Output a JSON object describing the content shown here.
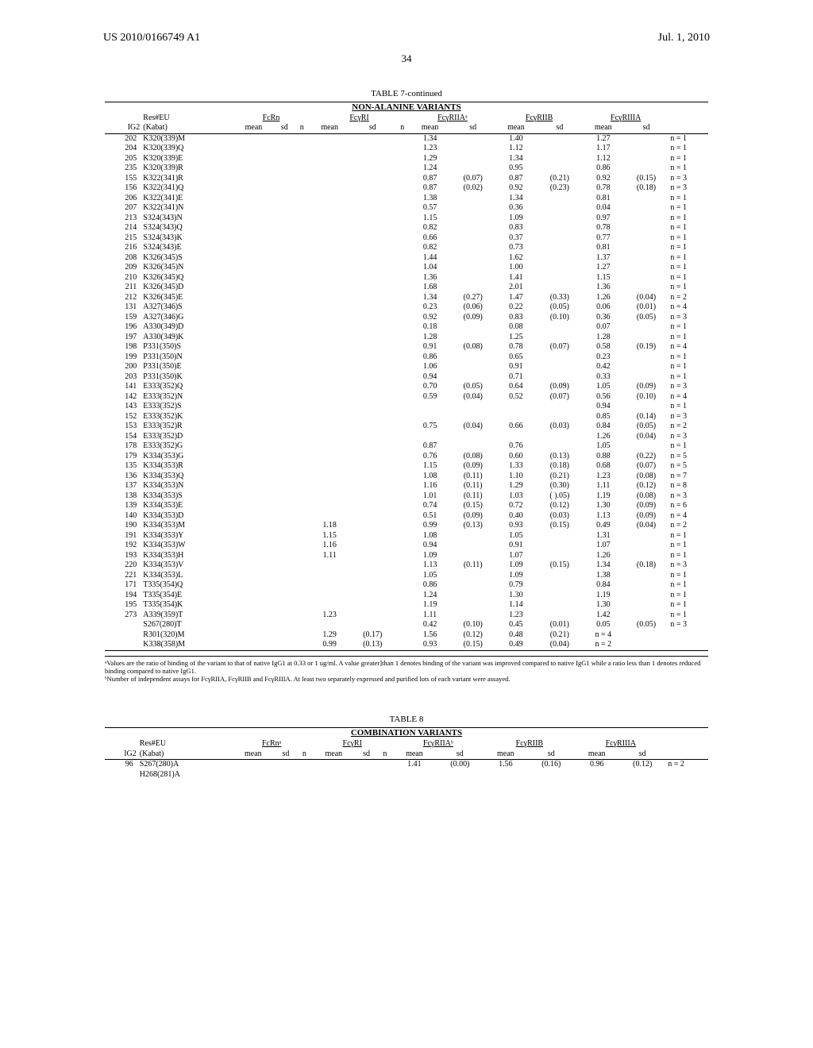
{
  "header": {
    "left": "US 2010/0166749 A1",
    "right": "Jul. 1, 2010",
    "page": "34"
  },
  "table7": {
    "title": "TABLE 7-continued",
    "subtitle": "NON-ALANINE VARIANTS",
    "group_headers": [
      "Res#EU",
      "FcRn",
      "FcγRI",
      "FcγRIIAᵃ",
      "FcγRIIB",
      "FcγRIIIA"
    ],
    "sub_headers_left": [
      "IG2",
      "(Kabat)"
    ],
    "sub_headers_stats": [
      "mean",
      "sd",
      "n",
      "mean",
      "sd",
      "n",
      "mean",
      "sd",
      "mean",
      "sd",
      "mean",
      "sd",
      ""
    ],
    "rows": [
      {
        "ig2": "202",
        "res": "K320(339)M",
        "rIIA_m": "1.34",
        "rIIB_m": "1.40",
        "rIIIA_m": "1.27",
        "n": "n = 1"
      },
      {
        "ig2": "204",
        "res": "K320(339)Q",
        "rIIA_m": "1.23",
        "rIIB_m": "1.12",
        "rIIIA_m": "1.17",
        "n": "n = 1"
      },
      {
        "ig2": "205",
        "res": "K320(339)E",
        "rIIA_m": "1.29",
        "rIIB_m": "1.34",
        "rIIIA_m": "1.12",
        "n": "n = 1"
      },
      {
        "ig2": "235",
        "res": "K320(339)R",
        "rIIA_m": "1.24",
        "rIIB_m": "0.95",
        "rIIIA_m": "0.86",
        "n": "n = 1"
      },
      {
        "ig2": "155",
        "res": "K322(341)R",
        "rIIA_m": "0.87",
        "rIIA_s": "(0.07)",
        "rIIB_m": "0.87",
        "rIIB_s": "(0.21)",
        "rIIIA_m": "0.92",
        "rIIIA_s": "(0.15)",
        "n": "n = 3"
      },
      {
        "ig2": "156",
        "res": "K322(341)Q",
        "rIIA_m": "0.87",
        "rIIA_s": "(0.02)",
        "rIIB_m": "0.92",
        "rIIB_s": "(0.23)",
        "rIIIA_m": "0.78",
        "rIIIA_s": "(0.18)",
        "n": "n = 3"
      },
      {
        "ig2": "206",
        "res": "K322(341)E",
        "rIIA_m": "1.38",
        "rIIB_m": "1.34",
        "rIIIA_m": "0.81",
        "n": "n = 1"
      },
      {
        "ig2": "207",
        "res": "K322(341)N",
        "rIIA_m": "0.57",
        "rIIB_m": "0.36",
        "rIIIA_m": "0.04",
        "n": "n = 1"
      },
      {
        "ig2": "213",
        "res": "S324(343)N",
        "rIIA_m": "1.15",
        "rIIB_m": "1.09",
        "rIIIA_m": "0.97",
        "n": "n = 1"
      },
      {
        "ig2": "214",
        "res": "S324(343)Q",
        "rIIA_m": "0.82",
        "rIIB_m": "0.83",
        "rIIIA_m": "0.78",
        "n": "n = 1"
      },
      {
        "ig2": "215",
        "res": "S324(343)K",
        "rIIA_m": "0.66",
        "rIIB_m": "0.37",
        "rIIIA_m": "0.77",
        "n": "n = 1"
      },
      {
        "ig2": "216",
        "res": "S324(343)E",
        "rIIA_m": "0.82",
        "rIIB_m": "0.73",
        "rIIIA_m": "0.81",
        "n": "n = 1"
      },
      {
        "ig2": "208",
        "res": "K326(345)S",
        "rIIA_m": "1.44",
        "rIIB_m": "1.62",
        "rIIIA_m": "1.37",
        "n": "n = 1"
      },
      {
        "ig2": "209",
        "res": "K326(345)N",
        "rIIA_m": "1.04",
        "rIIB_m": "1.00",
        "rIIIA_m": "1.27",
        "n": "n = 1"
      },
      {
        "ig2": "210",
        "res": "K326(345)Q",
        "rIIA_m": "1.36",
        "rIIB_m": "1.41",
        "rIIIA_m": "1.15",
        "n": "n = 1"
      },
      {
        "ig2": "211",
        "res": "K326(345)D",
        "rIIA_m": "1.68",
        "rIIB_m": "2.01",
        "rIIIA_m": "1.36",
        "n": "n = 1"
      },
      {
        "ig2": "212",
        "res": "K326(345)E",
        "rIIA_m": "1.34",
        "rIIA_s": "(0.27)",
        "rIIB_m": "1.47",
        "rIIB_s": "(0.33)",
        "rIIIA_m": "1.26",
        "rIIIA_s": "(0.04)",
        "n": "n = 2"
      },
      {
        "ig2": "131",
        "res": "A327(346)S",
        "rIIA_m": "0.23",
        "rIIA_s": "(0.06)",
        "rIIB_m": "0.22",
        "rIIB_s": "(0.05)",
        "rIIIA_m": "0.06",
        "rIIIA_s": "(0.01)",
        "n": "n = 4"
      },
      {
        "ig2": "159",
        "res": "A327(346)G",
        "rIIA_m": "0.92",
        "rIIA_s": "(0.09)",
        "rIIB_m": "0.83",
        "rIIB_s": "(0.10)",
        "rIIIA_m": "0.36",
        "rIIIA_s": "(0.05)",
        "n": "n = 3"
      },
      {
        "ig2": "196",
        "res": "A330(349)D",
        "rIIA_m": "0.18",
        "rIIB_m": "0.08",
        "rIIIA_m": "0.07",
        "n": "n = 1"
      },
      {
        "ig2": "197",
        "res": "A330(349)K",
        "rIIA_m": "1.28",
        "rIIB_m": "1.25",
        "rIIIA_m": "1.28",
        "n": "n = 1"
      },
      {
        "ig2": "198",
        "res": "P331(350)S",
        "rIIA_m": "0.91",
        "rIIA_s": "(0.08)",
        "rIIB_m": "0.78",
        "rIIB_s": "(0.07)",
        "rIIIA_m": "0.58",
        "rIIIA_s": "(0.19)",
        "n": "n = 4"
      },
      {
        "ig2": "199",
        "res": "P331(350)N",
        "rIIA_m": "0.86",
        "rIIB_m": "0.65",
        "rIIIA_m": "0.23",
        "n": "n = 1"
      },
      {
        "ig2": "200",
        "res": "P331(350)E",
        "rIIA_m": "1.06",
        "rIIB_m": "0.91",
        "rIIIA_m": "0.42",
        "n": "n = 1"
      },
      {
        "ig2": "203",
        "res": "P331(350)K",
        "rIIA_m": "0.94",
        "rIIB_m": "0.71",
        "rIIIA_m": "0.33",
        "n": "n = 1"
      },
      {
        "ig2": "141",
        "res": "E333(352)Q",
        "rIIA_m": "0.70",
        "rIIA_s": "(0.05)",
        "rIIB_m": "0.64",
        "rIIB_s": "(0.09)",
        "rIIIA_m": "1.05",
        "rIIIA_s": "(0.09)",
        "n": "n = 3"
      },
      {
        "ig2": "142",
        "res": "E333(352)N",
        "rIIA_m": "0.59",
        "rIIA_s": "(0.04)",
        "rIIB_m": "0.52",
        "rIIB_s": "(0.07)",
        "rIIIA_m": "0.56",
        "rIIIA_s": "(0.10)",
        "n": "n = 4"
      },
      {
        "ig2": "143",
        "res": "E333(352)S",
        "rIIIA_m": "0.94",
        "n": "n = 1"
      },
      {
        "ig2": "152",
        "res": "E333(352)K",
        "rIIIA_m": "0.85",
        "rIIIA_s": "(0.14)",
        "n": "n = 3"
      },
      {
        "ig2": "153",
        "res": "E333(352)R",
        "rIIA_m": "0.75",
        "rIIA_s": "(0.04)",
        "rIIB_m": "0.66",
        "rIIB_s": "(0.03)",
        "rIIIA_m": "0.84",
        "rIIIA_s": "(0.05)",
        "n": "n = 2"
      },
      {
        "ig2": "154",
        "res": "E333(352)D",
        "rIIIA_m": "1.26",
        "rIIIA_s": "(0.04)",
        "n": "n = 3"
      },
      {
        "ig2": "178",
        "res": "E333(352)G",
        "rIIA_m": "0.87",
        "rIIB_m": "0.76",
        "rIIIA_m": "1.05",
        "n": "n = 1"
      },
      {
        "ig2": "179",
        "res": "K334(353)G",
        "rIIA_m": "0.76",
        "rIIA_s": "(0.08)",
        "rIIB_m": "0.60",
        "rIIB_s": "(0.13)",
        "rIIIA_m": "0.88",
        "rIIIA_s": "(0.22)",
        "n": "n = 5"
      },
      {
        "ig2": "135",
        "res": "K334(353)R",
        "rIIA_m": "1.15",
        "rIIA_s": "(0.09)",
        "rIIB_m": "1.33",
        "rIIB_s": "(0.18)",
        "rIIIA_m": "0.68",
        "rIIIA_s": "(0.07)",
        "n": "n = 5"
      },
      {
        "ig2": "136",
        "res": "K334(353)Q",
        "rIIA_m": "1.08",
        "rIIA_s": "(0.11)",
        "rIIB_m": "1.10",
        "rIIB_s": "(0.21)",
        "rIIIA_m": "1.23",
        "rIIIA_s": "(0.08)",
        "n": "n = 7"
      },
      {
        "ig2": "137",
        "res": "K334(353)N",
        "rIIA_m": "1.16",
        "rIIA_s": "(0.11)",
        "rIIB_m": "1.29",
        "rIIB_s": "(0.30)",
        "rIIIA_m": "1.11",
        "rIIIA_s": "(0.12)",
        "n": "n = 8"
      },
      {
        "ig2": "138",
        "res": "K334(353)S",
        "rIIA_m": "1.01",
        "rIIA_s": "(0.11)",
        "rIIB_m": "1.03",
        "rIIB_s": "( ).05)",
        "rIIIA_m": "1.19",
        "rIIIA_s": "(0.08)",
        "n": "n = 3"
      },
      {
        "ig2": "139",
        "res": "K334(353)E",
        "rIIA_m": "0.74",
        "rIIA_s": "(0.15)",
        "rIIB_m": "0.72",
        "rIIB_s": "(0.12)",
        "rIIIA_m": "1.30",
        "rIIIA_s": "(0.09)",
        "n": "n = 6"
      },
      {
        "ig2": "140",
        "res": "K334(353)D",
        "rIIA_m": "0.51",
        "rIIA_s": "(0.09)",
        "rIIB_m": "0.40",
        "rIIB_s": "(0.03)",
        "rIIIA_m": "1.13",
        "rIIIA_s": "(0.09)",
        "n": "n = 4"
      },
      {
        "ig2": "190",
        "res": "K334(353)M",
        "rI_m": "1.18",
        "rIIA_m": "0.99",
        "rIIA_s": "(0.13)",
        "rIIB_m": "0.93",
        "rIIB_s": "(0.15)",
        "rIIIA_m": "0.49",
        "rIIIA_s": "(0.04)",
        "n": "n = 2"
      },
      {
        "ig2": "191",
        "res": "K334(353)Y",
        "rI_m": "1.15",
        "rIIA_m": "1.08",
        "rIIB_m": "1.05",
        "rIIIA_m": "1.31",
        "n": "n = 1"
      },
      {
        "ig2": "192",
        "res": "K334(353)W",
        "rI_m": "1.16",
        "rIIA_m": "0.94",
        "rIIB_m": "0.91",
        "rIIIA_m": "1.07",
        "n": "n = 1"
      },
      {
        "ig2": "193",
        "res": "K334(353)H",
        "rI_m": "1.11",
        "rIIA_m": "1.09",
        "rIIB_m": "1.07",
        "rIIIA_m": "1.26",
        "n": "n = 1"
      },
      {
        "ig2": "220",
        "res": "K334(353)V",
        "rIIA_m": "1.13",
        "rIIA_s": "(0.11)",
        "rIIB_m": "1.09",
        "rIIB_s": "(0.15)",
        "rIIIA_m": "1.34",
        "rIIIA_s": "(0.18)",
        "n": "n = 3"
      },
      {
        "ig2": "221",
        "res": "K334(353)L",
        "rIIA_m": "1.05",
        "rIIB_m": "1.09",
        "rIIIA_m": "1.38",
        "n": "n = 1"
      },
      {
        "ig2": "171",
        "res": "T335(354)Q",
        "rIIA_m": "0.86",
        "rIIB_m": "0.79",
        "rIIIA_m": "0.84",
        "n": "n = 1"
      },
      {
        "ig2": "194",
        "res": "T335(354)E",
        "rIIA_m": "1.24",
        "rIIB_m": "1.30",
        "rIIIA_m": "1.19",
        "n": "n = 1"
      },
      {
        "ig2": "195",
        "res": "T335(354)K",
        "rIIA_m": "1.19",
        "rIIB_m": "1.14",
        "rIIIA_m": "1.30",
        "n": "n = 1"
      },
      {
        "ig2": "273",
        "res": "A339(359)T",
        "rI_m": "1.23",
        "rIIA_m": "1.11",
        "rIIB_m": "1.23",
        "rIIIA_m": "1.42",
        "n": "n = 1"
      },
      {
        "ig2": "",
        "res": "S267(280)T",
        "rIIA_m": "0.42",
        "rIIA_s": "(0.10)",
        "rIIB_m": "0.45",
        "rIIB_s": "(0.01)",
        "rIIIA_m": "0.05",
        "rIIIA_s": "(0.05)",
        "n": "n = 3"
      },
      {
        "ig2": "",
        "res": "R301(320)M",
        "rI_m": "1.29",
        "rI_s": "(0.17)",
        "rIIA_m": "1.56",
        "rIIA_s": "(0.12)",
        "rIIB_m": "0.48",
        "rIIB_s": "(0.21)",
        "rIIIA_m": "n = 4",
        "n": ""
      },
      {
        "ig2": "",
        "res": "K338(358)M",
        "rI_m": "0.99",
        "rI_s": "(0.13)",
        "rIIA_m": "0.93",
        "rIIA_s": "(0.15)",
        "rIIB_m": "0.49",
        "rIIB_s": "(0.04)",
        "rIIIA_m": "n = 2",
        "n": ""
      }
    ]
  },
  "footnotes": {
    "a": "ᵃValues are the ratio of binding of the variant to that of native IgG1 at 0.33 or 1 ug/ml. A value greater]than 1 denotes binding of the variant was improved compared to native IgG1 while a ratio less than 1 denotes reduced binding compared to native IgG1.",
    "b": "ᵇNumber of independent assays for FcγRIIA, FcγRIIB and FcγRIIIA. At least two separately expressed and purified lots of each variant were assayed."
  },
  "table8": {
    "title": "TABLE 8",
    "subtitle": "COMBINATION VARIANTS",
    "group_headers": [
      "Res#EU",
      "FcRnᵃ",
      "FcγRI",
      "FcγRIIAᵇ",
      "FcγRIIB",
      "FcγRIIIA"
    ],
    "sub_headers_left": [
      "IG2",
      "(Kabat)"
    ],
    "sub_headers_stats": [
      "mean",
      "sd",
      "n",
      "mean",
      "sd",
      "n",
      "mean",
      "sd",
      "mean",
      "sd",
      "mean",
      "sd",
      ""
    ],
    "rows": [
      {
        "ig2": "96",
        "res": "S267(280)A",
        "rIIA_m": "1.41",
        "rIIA_s": "(0.00)",
        "rIIB_m": "1.56",
        "rIIB_s": "(0.16)",
        "rIIIA_m": "0.96",
        "rIIIA_s": "(0.12)",
        "n": "n = 2"
      },
      {
        "ig2": "",
        "res": "H268(281)A"
      }
    ]
  }
}
